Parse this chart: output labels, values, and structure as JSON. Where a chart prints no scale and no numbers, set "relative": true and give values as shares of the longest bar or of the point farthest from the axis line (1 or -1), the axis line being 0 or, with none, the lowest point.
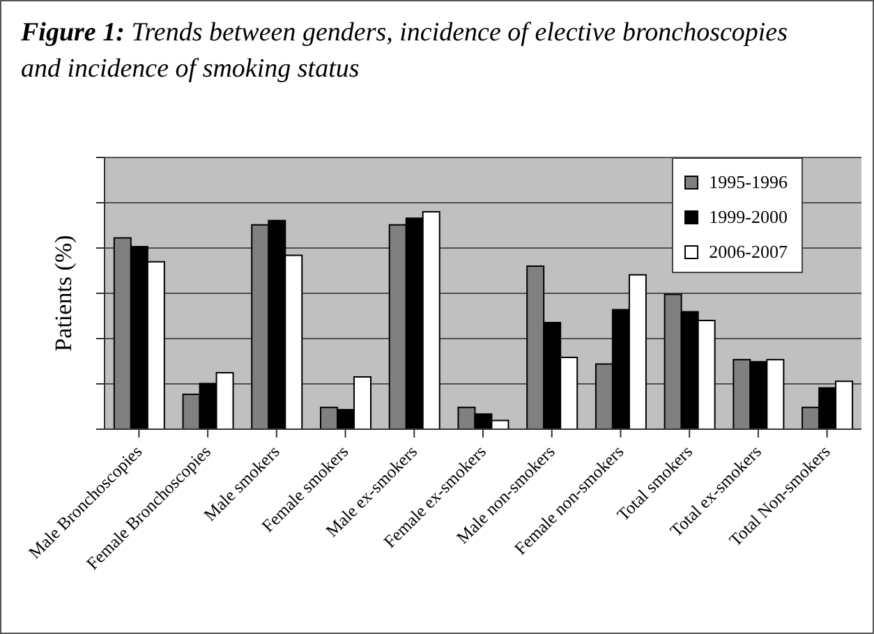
{
  "chart_data": {
    "type": "bar",
    "title": "Figure 1: Trends between genders, incidence of elective bronchoscopies and incidence of smoking status",
    "ylabel": "Patients (%)",
    "relative": true,
    "grid": "y",
    "legend": "top right",
    "categories": [
      "Male Bronchoscopies",
      "Female Bronchoscopies",
      "Male smokers",
      "Female smokers",
      "Male ex-smokers",
      "Female ex-smokers",
      "Male non-smokers",
      "Female non-smokers",
      "Total smokers",
      "Total ex-smokers",
      "Total Non-smokers"
    ],
    "series": [
      {
        "name": "1995-1996",
        "color": "#808080",
        "values": [
          0.88,
          0.16,
          0.94,
          0.1,
          0.94,
          0.1,
          0.75,
          0.3,
          0.62,
          0.32,
          0.1
        ]
      },
      {
        "name": "1999-2000",
        "color": "#000000",
        "values": [
          0.84,
          0.21,
          0.96,
          0.09,
          0.97,
          0.07,
          0.49,
          0.55,
          0.54,
          0.31,
          0.19
        ]
      },
      {
        "name": "2006-2007",
        "color": "#ffffff",
        "values": [
          0.77,
          0.26,
          0.8,
          0.24,
          1,
          0.04,
          0.33,
          0.71,
          0.5,
          0.32,
          0.22
        ]
      }
    ]
  }
}
